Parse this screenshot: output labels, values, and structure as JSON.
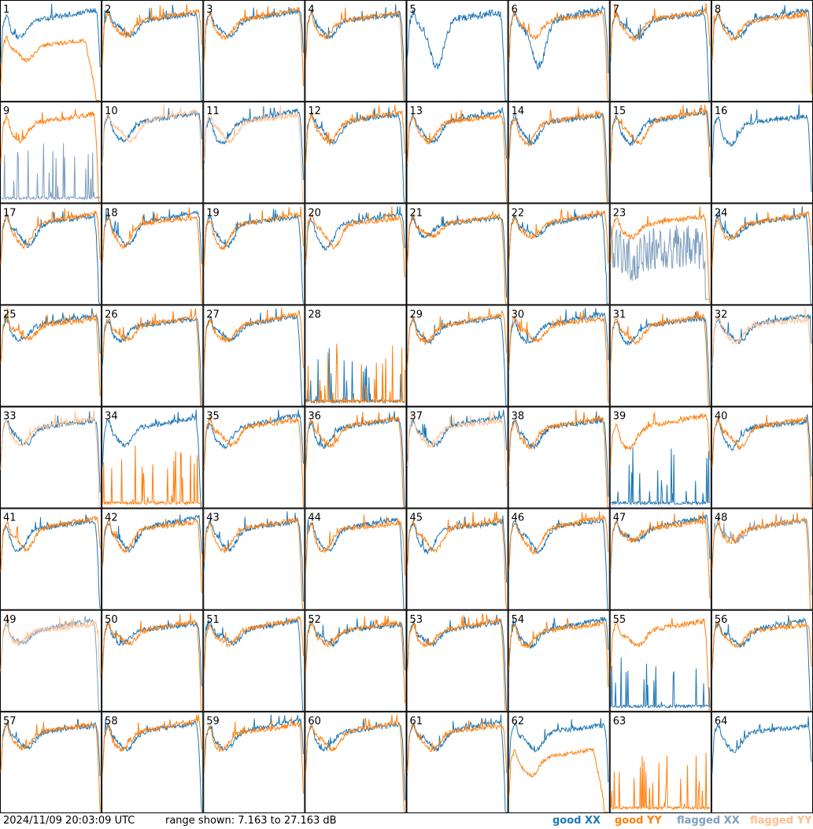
{
  "chart_data": {
    "type": "line",
    "layout": "grid of 64 small panels (8 rows x 8 columns), panel number at top-left of each",
    "x_axis": "frequency channel (unlabeled)",
    "y_range_db": [
      7.163,
      27.163
    ],
    "panels_numbered": "1-64",
    "legend": {
      "position": "bottom-right",
      "items": [
        {
          "label": "good XX",
          "color": "#1f77b4"
        },
        {
          "label": "good YY",
          "color": "#ff7f0e"
        },
        {
          "label": "flagged XX",
          "color": "#7f9fbf"
        },
        {
          "label": "flagged YY",
          "color": "#ffbf8f"
        }
      ]
    },
    "flagged_xx_panels": [
      9,
      23,
      48,
      49
    ],
    "flagged_yy_panels": [
      10,
      11,
      32,
      33,
      37,
      49
    ],
    "series_shapes": {
      "template": "spiky 'bathtub' bandpass: peak near left edge, dip at ~20%, slow rise to right, roll-off at right edge",
      "notes": {
        "1": "YY drops far below, cut off at right",
        "5": "XX only with deep dip; YY mostly absent",
        "6": "XX very noisy deep dip",
        "9": "XX flagged, mostly spikes near bottom",
        "16": "XX only",
        "23": "XX flagged, very noisy",
        "28": "both mostly noise spikes near bottom",
        "32": "YY flagged",
        "34": "XX normal; YY mostly near bottom",
        "39": "YY normal; XX near bottom",
        "55": "YY normal; XX spikes near bottom",
        "63": "YY spikes near bottom; XX absent",
        "64": "XX only"
      }
    }
  },
  "footer": {
    "timestamp": "2024/11/09 20:03:09 UTC",
    "range_text": "range shown: 7.163 to 27.163 dB"
  }
}
